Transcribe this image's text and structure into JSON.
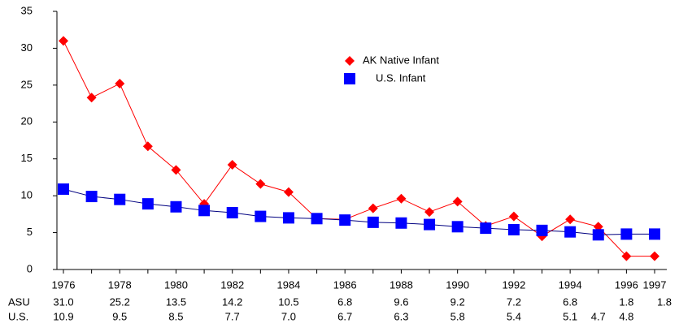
{
  "chart_data": {
    "type": "line",
    "categories": [
      1976,
      null,
      1978,
      null,
      1980,
      null,
      1982,
      null,
      1984,
      null,
      1986,
      null,
      1988,
      null,
      1990,
      null,
      1992,
      null,
      1994,
      null,
      1996,
      1997
    ],
    "series": [
      {
        "name": "AK Native Infant",
        "row_label": "ASU",
        "color": "#ff0000",
        "marker": "diamond",
        "values": [
          31.0,
          23.3,
          25.2,
          16.7,
          13.5,
          8.9,
          14.2,
          11.6,
          10.5,
          6.9,
          6.8,
          8.3,
          9.6,
          7.8,
          9.2,
          5.9,
          7.2,
          4.5,
          6.8,
          5.8,
          1.8,
          1.8
        ],
        "value_labels": [
          "31.0",
          null,
          "25.2",
          null,
          "13.5",
          null,
          "14.2",
          null,
          "10.5",
          null,
          "6.8",
          null,
          "9.6",
          null,
          "9.2",
          null,
          "7.2",
          null,
          "6.8",
          null,
          "1.8",
          "1.8"
        ]
      },
      {
        "name": "U.S. Infant",
        "row_label": "U.S.",
        "color": "#0000ff",
        "line_color": "#000080",
        "marker": "square",
        "values": [
          10.9,
          9.9,
          9.5,
          8.9,
          8.5,
          8.0,
          7.7,
          7.2,
          7.0,
          6.9,
          6.7,
          6.4,
          6.3,
          6.1,
          5.8,
          5.6,
          5.4,
          5.3,
          5.1,
          4.7,
          4.8,
          4.8
        ],
        "value_labels": [
          "10.9",
          null,
          "9.5",
          null,
          "8.5",
          null,
          "7.7",
          null,
          "7.0",
          null,
          "6.7",
          null,
          "6.3",
          null,
          "5.8",
          null,
          "5.4",
          null,
          "5.1",
          "4.7",
          "4.8",
          null
        ]
      }
    ],
    "ylim": [
      0,
      35
    ],
    "yticks": [
      0,
      5,
      10,
      15,
      20,
      25,
      30,
      35
    ],
    "grid": false
  }
}
